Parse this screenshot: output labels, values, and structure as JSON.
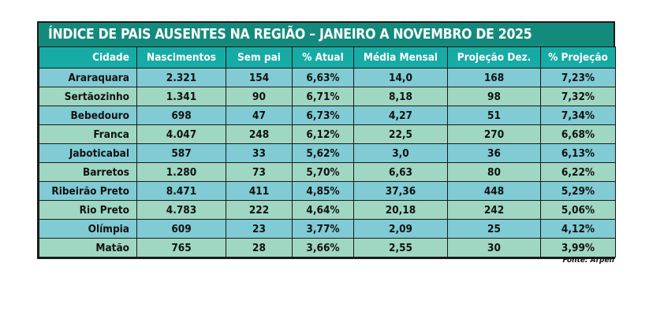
{
  "title": "ÍNDICE DE PAIS AUSENTES NA REGIÃO – JANEIRO A NOVEMBRO DE 2025",
  "columns": [
    "Cidade",
    "Nascimentos",
    "Sem pai",
    "% Atual",
    "Média Mensal",
    "Projeção Dez.",
    "% Projeção"
  ],
  "rows": [
    [
      "Araraquara",
      "2.321",
      "154",
      "6,63%",
      "14,0",
      "168",
      "7,23%"
    ],
    [
      "Sertãozinho",
      "1.341",
      "90",
      "6,71%",
      "8,18",
      "98",
      "7,32%"
    ],
    [
      "Bebedouro",
      "698",
      "47",
      "6,73%",
      "4,27",
      "51",
      "7,34%"
    ],
    [
      "Franca",
      "4.047",
      "248",
      "6,12%",
      "22,5",
      "270",
      "6,68%"
    ],
    [
      "Jaboticabal",
      "587",
      "33",
      "5,62%",
      "3,0",
      "36",
      "6,13%"
    ],
    [
      "Barretos",
      "1.280",
      "73",
      "5,70%",
      "6,63",
      "80",
      "6,22%"
    ],
    [
      "Ribeirão Preto",
      "8.471",
      "411",
      "4,85%",
      "37,36",
      "448",
      "5,29%"
    ],
    [
      "Rio Preto",
      "4.783",
      "222",
      "4,64%",
      "20,18",
      "242",
      "5,06%"
    ],
    [
      "Olímpia",
      "609",
      "23",
      "3,77%",
      "2,09",
      "25",
      "4,12%"
    ],
    [
      "Matão",
      "765",
      "28",
      "3,66%",
      "2,55",
      "30",
      "3,99%"
    ]
  ],
  "source": "Fonte: Arpen",
  "colors": {
    "title_bg": "#138a7b",
    "header_bg": "#17aba5",
    "row_blue": "#80cbd4",
    "row_green": "#9fd7c2"
  }
}
